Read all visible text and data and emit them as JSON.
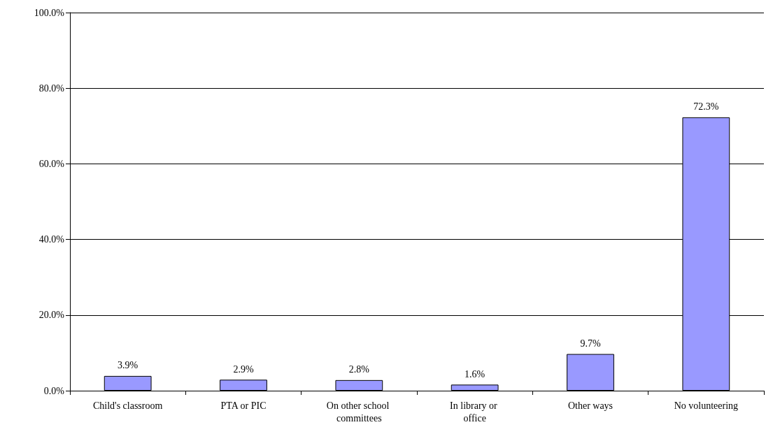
{
  "chart_data": {
    "type": "bar",
    "categories": [
      "Child's classroom",
      "PTA or PIC",
      "On other school committees",
      "In library or office",
      "Other ways",
      "No volunteering"
    ],
    "values": [
      3.9,
      2.9,
      2.8,
      1.6,
      9.7,
      72.3
    ],
    "value_labels": [
      "3.9%",
      "2.9%",
      "2.8%",
      "1.6%",
      "9.7%",
      "72.3%"
    ],
    "color": "#9999ff",
    "ylim": [
      0,
      100
    ],
    "yticks": [
      {
        "value": 0,
        "label": "0.0%"
      },
      {
        "value": 20,
        "label": "20.0%"
      },
      {
        "value": 40,
        "label": "40.0%"
      },
      {
        "value": 60,
        "label": "60.0%"
      },
      {
        "value": 80,
        "label": "80.0%"
      },
      {
        "value": 100,
        "label": "100.0%"
      }
    ],
    "grid": "y"
  }
}
